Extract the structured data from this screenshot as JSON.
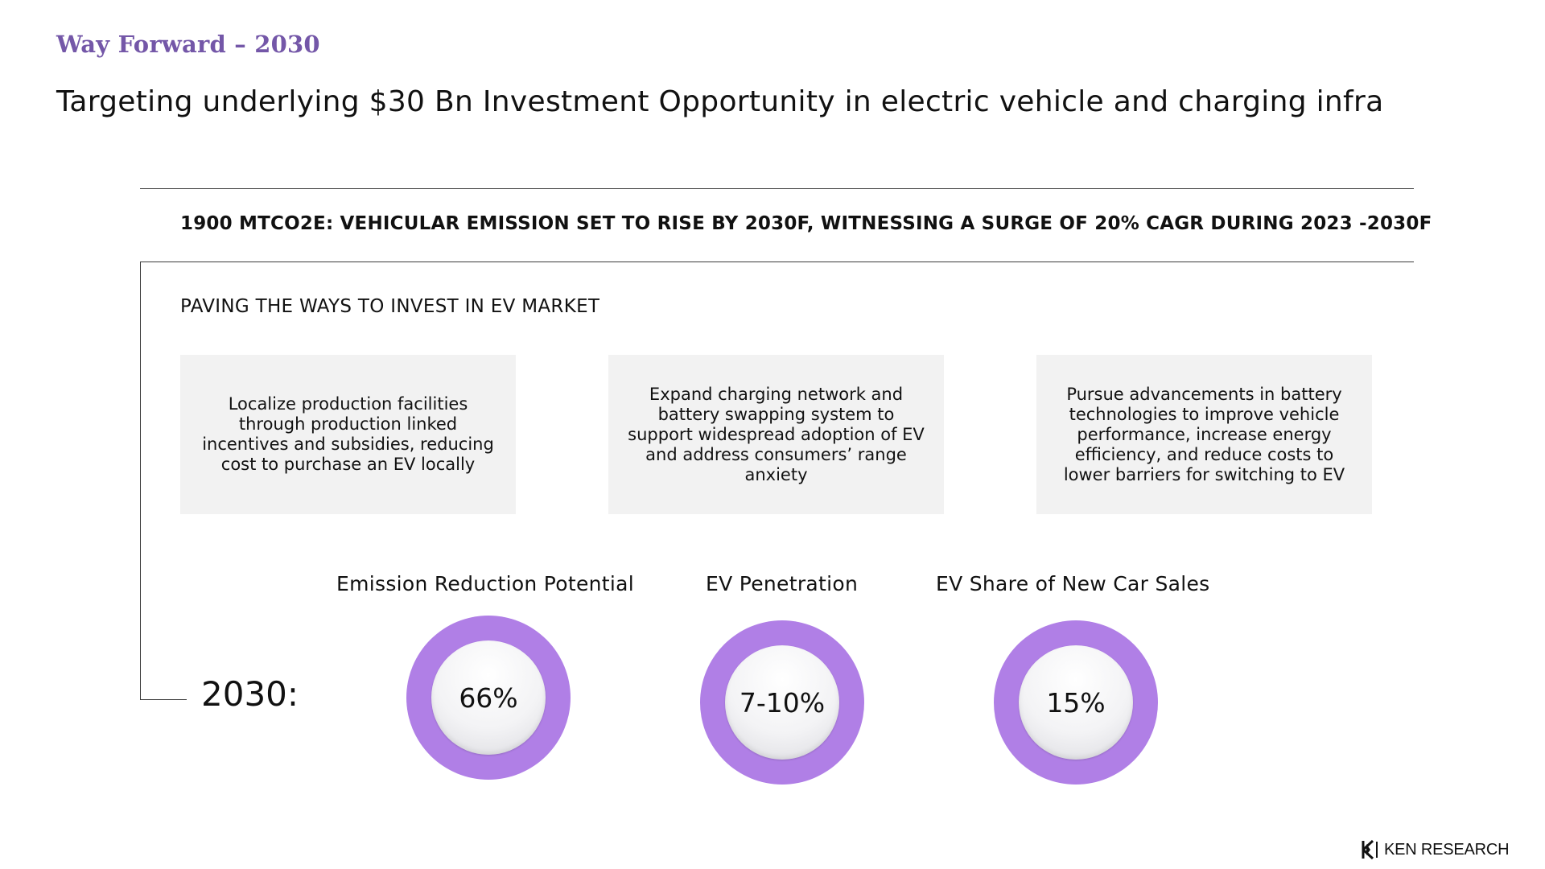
{
  "header": {
    "section_title": "Way Forward – 2030",
    "title": "Targeting underlying $30 Bn Investment Opportunity in electric vehicle and charging infra"
  },
  "headline": "1900 MTCO2E: VEHICULAR EMISSION SET TO RISE BY 2030F, WITNESSING A SURGE OF 20% CAGR DURING 2023 -2030F",
  "subheading": "PAVING THE WAYS TO INVEST IN EV MARKET",
  "cards": [
    {
      "text": "Localize production facilities through production linked incentives and subsidies, reducing cost to purchase an EV locally"
    },
    {
      "text": "Expand charging network and battery swapping system to support widespread adoption of EV and address consumers’ range anxiety"
    },
    {
      "text": "Pursue advancements in battery technologies to improve vehicle performance, increase energy efficiency, and reduce costs to lower barriers for switching to EV"
    }
  ],
  "year_label": "2030:",
  "metrics": [
    {
      "label": "Emission Reduction Potential",
      "value": "66%"
    },
    {
      "label": "EV Penetration",
      "value": "7-10%"
    },
    {
      "label": "EV Share of  New Car Sales",
      "value": "15%"
    }
  ],
  "logo": {
    "text": "KEN RESEARCH"
  },
  "colors": {
    "accent": "#7457a8",
    "donut": "#b07fe6",
    "card_bg": "#f2f2f2"
  }
}
